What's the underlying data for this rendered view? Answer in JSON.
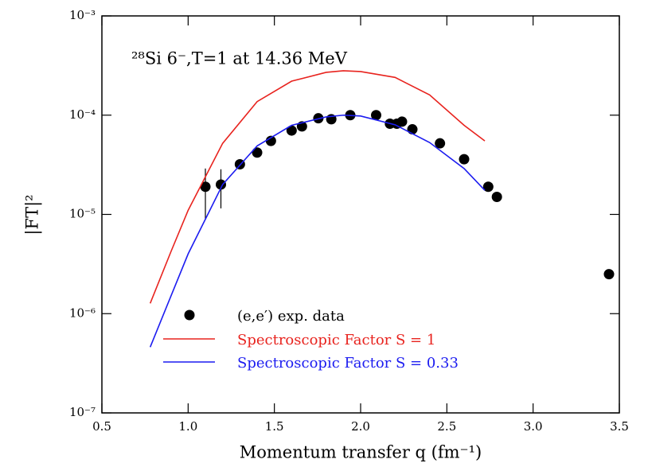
{
  "chart_data": {
    "type": "scatter",
    "annotation": "²⁸Si 6⁻,T=1 at 14.36 MeV",
    "xlabel": "Momentum transfer q (fm⁻¹)",
    "ylabel": "|FT|²",
    "xlim": [
      0.5,
      3.5
    ],
    "xticks": [
      0.5,
      {
        "value": 1,
        "label": "1.0"
      },
      1.5,
      {
        "value": 2,
        "label": "2.0"
      },
      2.5,
      {
        "value": 3,
        "label": "3.0"
      },
      3.5
    ],
    "ylim": [
      1e-07,
      0.001
    ],
    "yscale": "log",
    "yticks": [
      {
        "value": 1e-07,
        "label": "10⁻⁷"
      },
      {
        "value": 1e-06,
        "label": "10⁻⁶"
      },
      {
        "value": 1e-05,
        "label": "10⁻⁵"
      },
      {
        "value": 0.0001,
        "label": "10⁻⁴"
      },
      {
        "value": 0.001,
        "label": "10⁻³"
      }
    ],
    "legend": "lower left",
    "series": [
      {
        "name": "(e,e′) exp. data",
        "type": "scatter",
        "color": "#000000",
        "x": [
          1.1,
          1.19,
          1.3,
          1.4,
          1.48,
          1.6,
          1.66,
          1.755,
          1.83,
          1.94,
          2.09,
          2.17,
          2.21,
          2.24,
          2.3,
          2.46,
          2.6,
          2.74,
          2.79,
          3.44
        ],
        "values": [
          1.9e-05,
          2e-05,
          3.2e-05,
          4.2e-05,
          5.5e-05,
          7e-05,
          7.7e-05,
          9.3e-05,
          9.1e-05,
          0.0001,
          0.0001,
          8.2e-05,
          8.2e-05,
          8.6e-05,
          7.2e-05,
          5.2e-05,
          3.6e-05,
          1.9e-05,
          1.5e-05,
          2.5e-06
        ],
        "yerr": [
          1e-05,
          8.5e-06,
          null,
          null,
          null,
          null,
          null,
          null,
          null,
          null,
          null,
          null,
          null,
          null,
          null,
          null,
          null,
          null,
          null,
          null
        ]
      },
      {
        "name": "Spectroscopic Factor S = 1",
        "type": "line",
        "color": "#e8231e",
        "x": [
          0.78,
          0.9,
          1.0,
          1.2,
          1.4,
          1.6,
          1.8,
          1.9,
          2.0,
          2.2,
          2.4,
          2.6,
          2.72
        ],
        "values": [
          1.27e-06,
          4.2e-06,
          1.1e-05,
          5.2e-05,
          0.000137,
          0.00022,
          0.00027,
          0.00028,
          0.000275,
          0.00024,
          0.00016,
          7.9e-05,
          5.5e-05
        ]
      },
      {
        "name": "Spectroscopic Factor S = 0.33",
        "type": "line",
        "color": "#1c1cf0",
        "x": [
          0.78,
          0.9,
          1.0,
          1.2,
          1.4,
          1.6,
          1.8,
          1.9,
          2.0,
          2.2,
          2.4,
          2.6,
          2.72
        ],
        "values": [
          4.6e-07,
          1.5e-06,
          4e-06,
          2e-05,
          4.9e-05,
          7.9e-05,
          9.6e-05,
          0.0001,
          9.8e-05,
          8e-05,
          5.3e-05,
          2.9e-05,
          1.75e-05
        ]
      }
    ]
  }
}
